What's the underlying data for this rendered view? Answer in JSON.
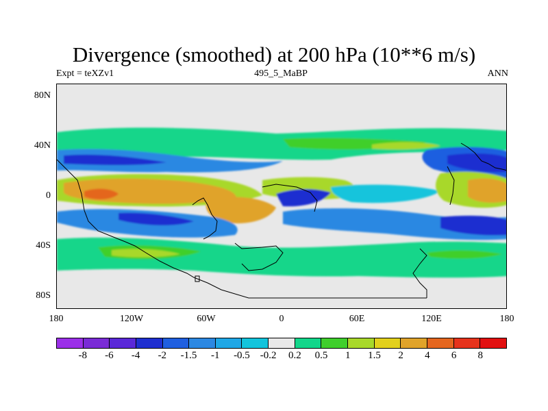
{
  "header": {
    "title": "Divergence (smoothed) at 200 hPa (10**6 m/s)",
    "left": "Expt = teXZv1",
    "center": "495_5_MaBP",
    "right": "ANN"
  },
  "map": {
    "lat_labels": [
      "80N",
      "40N",
      "0",
      "40S",
      "80S"
    ],
    "lon_labels": [
      "180",
      "120W",
      "60W",
      "0",
      "60E",
      "120E",
      "180"
    ],
    "background_color": "#e8e8e8"
  },
  "colorbar": {
    "colors": [
      "#9b30e8",
      "#7a2bd6",
      "#5a28d8",
      "#1f2fd0",
      "#1f5fe0",
      "#2c88e2",
      "#1fa7e6",
      "#12c4dc",
      "#e8e8e8",
      "#12d68a",
      "#3fcf2c",
      "#a8d82a",
      "#e2d01c",
      "#e0a32a",
      "#e4661f",
      "#e6331c",
      "#e21010"
    ],
    "labels": [
      "-8",
      "-6",
      "-4",
      "-2",
      "-1.5",
      "-1",
      "-0.5",
      "-0.2",
      "0.2",
      "0.5",
      "1",
      "1.5",
      "2",
      "4",
      "6",
      "8"
    ]
  }
}
